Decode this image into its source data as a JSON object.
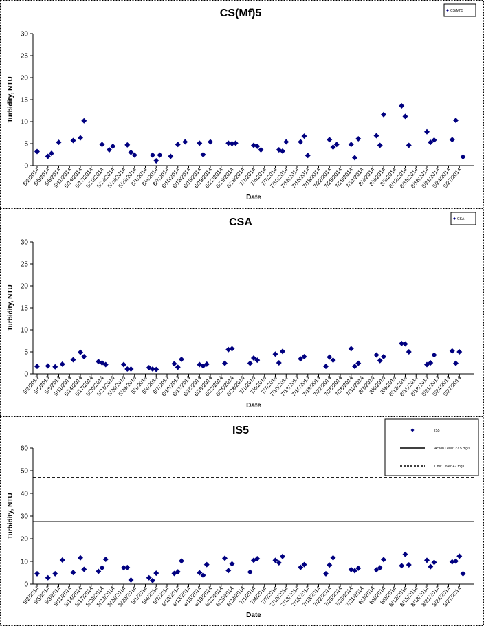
{
  "chart_data": [
    {
      "type": "scatter",
      "title": "CS(Mf)5",
      "xlabel": "Date",
      "ylabel": "Turbidity, NTU",
      "ylim": [
        0,
        30
      ],
      "yticks": [
        0,
        5,
        10,
        15,
        20,
        25,
        30
      ],
      "grid": false,
      "legend_position": "top-right",
      "xticks": [
        "5/2/2014",
        "5/5/2014",
        "5/8/2014",
        "5/11/2014",
        "5/14/2014",
        "5/17/2014",
        "5/20/2014",
        "5/23/2014",
        "5/26/2014",
        "5/29/2014",
        "6/1/2014",
        "6/4/2014",
        "6/7/2014",
        "6/10/2014",
        "6/13/2014",
        "6/16/2014",
        "6/19/2014",
        "6/22/2014",
        "6/25/2014",
        "6/28/2014",
        "7/1/2014",
        "7/4/2014",
        "7/7/2014",
        "7/10/2014",
        "7/13/2014",
        "7/16/2014",
        "7/19/2014",
        "7/22/2014",
        "7/25/2014",
        "7/28/2014",
        "7/31/2014",
        "8/3/2014",
        "8/6/2014",
        "8/9/2014",
        "8/12/2014",
        "8/15/2014",
        "8/18/2014",
        "8/21/2014",
        "8/24/2014",
        "8/27/2014"
      ],
      "series": [
        {
          "name": "CS(Mf)5",
          "color": "#000080",
          "x": [
            "5/2/2014",
            "5/5/2014",
            "5/6/2014",
            "5/8/2014",
            "5/12/2014",
            "5/14/2014",
            "5/15/2014",
            "5/20/2014",
            "5/22/2014",
            "5/23/2014",
            "5/27/2014",
            "5/28/2014",
            "5/29/2014",
            "6/3/2014",
            "6/4/2014",
            "6/5/2014",
            "6/8/2014",
            "6/10/2014",
            "6/12/2014",
            "6/16/2014",
            "6/17/2014",
            "6/19/2014",
            "6/24/2014",
            "6/25/2014",
            "6/26/2014",
            "7/1/2014",
            "7/2/2014",
            "7/3/2014",
            "7/8/2014",
            "7/9/2014",
            "7/10/2014",
            "7/14/2014",
            "7/15/2014",
            "7/16/2014",
            "7/22/2014",
            "7/23/2014",
            "7/24/2014",
            "7/28/2014",
            "7/29/2014",
            "7/30/2014",
            "8/4/2014",
            "8/5/2014",
            "8/6/2014",
            "8/11/2014",
            "8/12/2014",
            "8/13/2014",
            "8/18/2014",
            "8/19/2014",
            "8/20/2014",
            "8/25/2014",
            "8/26/2014",
            "8/28/2014"
          ],
          "y": [
            3.2,
            2.1,
            2.8,
            5.3,
            5.7,
            6.3,
            10.2,
            4.8,
            3.6,
            4.4,
            4.7,
            3.0,
            2.4,
            2.4,
            1.1,
            2.4,
            2.1,
            4.8,
            5.4,
            5.1,
            2.5,
            5.4,
            5.1,
            5.0,
            5.1,
            4.6,
            4.4,
            3.6,
            3.6,
            3.3,
            5.4,
            5.4,
            6.7,
            2.3,
            5.9,
            4.2,
            4.8,
            4.8,
            1.8,
            6.1,
            6.8,
            4.6,
            11.6,
            13.6,
            11.2,
            4.6,
            7.7,
            5.3,
            5.8,
            5.9,
            10.3,
            2.0
          ]
        }
      ],
      "legend": [
        {
          "label": "CS(Mf)5",
          "marker": "diamond"
        }
      ]
    },
    {
      "type": "scatter",
      "title": "CSA",
      "xlabel": "Date",
      "ylabel": "Turbidity, NTU",
      "ylim": [
        0,
        30
      ],
      "yticks": [
        0,
        5,
        10,
        15,
        20,
        25,
        30
      ],
      "grid": false,
      "legend_position": "top-right",
      "xticks": [
        "5/2/2014",
        "5/5/2014",
        "5/8/2014",
        "5/11/2014",
        "5/14/2014",
        "5/17/2014",
        "5/20/2014",
        "5/23/2014",
        "5/26/2014",
        "5/29/2014",
        "6/1/2014",
        "6/4/2014",
        "6/7/2014",
        "6/10/2014",
        "6/13/2014",
        "6/16/2014",
        "6/19/2014",
        "6/22/2014",
        "6/25/2014",
        "6/28/2014",
        "7/1/2014",
        "7/4/2014",
        "7/7/2014",
        "7/10/2014",
        "7/13/2014",
        "7/16/2014",
        "7/19/2014",
        "7/22/2014",
        "7/25/2014",
        "7/28/2014",
        "7/31/2014",
        "8/3/2014",
        "8/6/2014",
        "8/9/2014",
        "8/12/2014",
        "8/15/2014",
        "8/18/2014",
        "8/21/2014",
        "8/24/2014",
        "8/27/2014"
      ],
      "series": [
        {
          "name": "CSA",
          "color": "#000080",
          "x": [
            "5/2/2014",
            "5/5/2014",
            "5/7/2014",
            "5/9/2014",
            "5/12/2014",
            "5/14/2014",
            "5/15/2014",
            "5/19/2014",
            "5/20/2014",
            "5/21/2014",
            "5/26/2014",
            "5/27/2014",
            "5/28/2014",
            "6/2/2014",
            "6/3/2014",
            "6/4/2014",
            "6/9/2014",
            "6/10/2014",
            "6/11/2014",
            "6/16/2014",
            "6/17/2014",
            "6/18/2014",
            "6/23/2014",
            "6/24/2014",
            "6/25/2014",
            "6/30/2014",
            "7/1/2014",
            "7/2/2014",
            "7/7/2014",
            "7/8/2014",
            "7/9/2014",
            "7/14/2014",
            "7/15/2014",
            "7/21/2014",
            "7/22/2014",
            "7/23/2014",
            "7/28/2014",
            "7/29/2014",
            "7/30/2014",
            "8/4/2014",
            "8/5/2014",
            "8/6/2014",
            "8/11/2014",
            "8/12/2014",
            "8/13/2014",
            "8/18/2014",
            "8/19/2014",
            "8/20/2014",
            "8/25/2014",
            "8/26/2014",
            "8/27/2014"
          ],
          "y": [
            1.7,
            1.8,
            1.6,
            2.2,
            3.2,
            4.9,
            3.9,
            2.8,
            2.5,
            2.1,
            2.1,
            1.1,
            1.1,
            1.4,
            1.1,
            1.0,
            2.3,
            1.5,
            3.3,
            2.1,
            1.8,
            2.2,
            2.4,
            5.5,
            5.7,
            2.4,
            3.6,
            3.1,
            4.5,
            2.5,
            5.1,
            3.4,
            3.9,
            1.7,
            3.8,
            3.1,
            5.7,
            1.7,
            2.4,
            4.3,
            3.0,
            3.9,
            6.9,
            6.8,
            5.0,
            2.1,
            2.5,
            4.3,
            5.2,
            2.4,
            5.0
          ]
        }
      ],
      "legend": [
        {
          "label": "CSA",
          "marker": "diamond"
        }
      ]
    },
    {
      "type": "scatter",
      "title": "IS5",
      "xlabel": "Date",
      "ylabel": "Turbidity, NTU",
      "ylim": [
        0,
        60
      ],
      "yticks": [
        0,
        10,
        20,
        30,
        40,
        50,
        60
      ],
      "grid": false,
      "legend_position": "top-right",
      "xticks": [
        "5/2/2014",
        "5/5/2014",
        "5/8/2014",
        "5/11/2014",
        "5/14/2014",
        "5/17/2014",
        "5/20/2014",
        "5/23/2014",
        "5/26/2014",
        "5/29/2014",
        "6/1/2014",
        "6/4/2014",
        "6/7/2014",
        "6/10/2014",
        "6/13/2014",
        "6/16/2014",
        "6/19/2014",
        "6/22/2014",
        "6/25/2014",
        "6/28/2014",
        "7/1/2014",
        "7/4/2014",
        "7/7/2014",
        "7/10/2014",
        "7/13/2014",
        "7/16/2014",
        "7/19/2014",
        "7/22/2014",
        "7/25/2014",
        "7/28/2014",
        "7/31/2014",
        "8/3/2014",
        "8/6/2014",
        "8/9/2014",
        "8/12/2014",
        "8/15/2014",
        "8/18/2014",
        "8/21/2014",
        "8/24/2014",
        "8/27/2014"
      ],
      "series": [
        {
          "name": "IS5",
          "color": "#000080",
          "x": [
            "5/2/2014",
            "5/5/2014",
            "5/7/2014",
            "5/9/2014",
            "5/12/2014",
            "5/14/2014",
            "5/15/2014",
            "5/19/2014",
            "5/20/2014",
            "5/21/2014",
            "5/26/2014",
            "5/27/2014",
            "5/28/2014",
            "6/2/2014",
            "6/3/2014",
            "6/4/2014",
            "6/9/2014",
            "6/10/2014",
            "6/11/2014",
            "6/16/2014",
            "6/17/2014",
            "6/18/2014",
            "6/23/2014",
            "6/24/2014",
            "6/25/2014",
            "6/30/2014",
            "7/1/2014",
            "7/2/2014",
            "7/7/2014",
            "7/8/2014",
            "7/9/2014",
            "7/14/2014",
            "7/15/2014",
            "7/21/2014",
            "7/22/2014",
            "7/23/2014",
            "7/28/2014",
            "7/29/2014",
            "7/30/2014",
            "8/4/2014",
            "8/5/2014",
            "8/6/2014",
            "8/11/2014",
            "8/12/2014",
            "8/13/2014",
            "8/18/2014",
            "8/19/2014",
            "8/20/2014",
            "8/25/2014",
            "8/26/2014",
            "8/27/2014",
            "8/28/2014"
          ],
          "y": [
            4.6,
            2.8,
            4.6,
            10.6,
            5.1,
            11.6,
            6.5,
            5.6,
            7.2,
            10.9,
            7.2,
            7.3,
            1.8,
            2.8,
            1.6,
            4.8,
            4.7,
            5.4,
            10.2,
            5.0,
            3.9,
            8.6,
            11.4,
            6.0,
            8.9,
            5.3,
            10.5,
            11.2,
            10.5,
            9.4,
            12.2,
            7.4,
            8.6,
            4.6,
            8.4,
            11.6,
            6.4,
            5.9,
            7.0,
            6.3,
            7.2,
            10.8,
            8.1,
            13.1,
            8.5,
            10.5,
            7.7,
            9.6,
            9.8,
            10.1,
            12.3,
            4.6
          ]
        },
        {
          "name": "Action Level: 27.5 mg/L",
          "type": "hline",
          "y": 27.5,
          "color": "#000000",
          "linestyle": "solid"
        },
        {
          "name": "Limit Level: 47 mg/L",
          "type": "hline",
          "y": 47,
          "color": "#000000",
          "linestyle": "dashed"
        }
      ],
      "legend": [
        {
          "label": "IS5",
          "marker": "diamond"
        },
        {
          "label": "Action Level: 27.5 mg/L",
          "marker": "solid-line"
        },
        {
          "label": "Limit Level: 47 mg/L",
          "marker": "dashed-line"
        }
      ]
    }
  ]
}
